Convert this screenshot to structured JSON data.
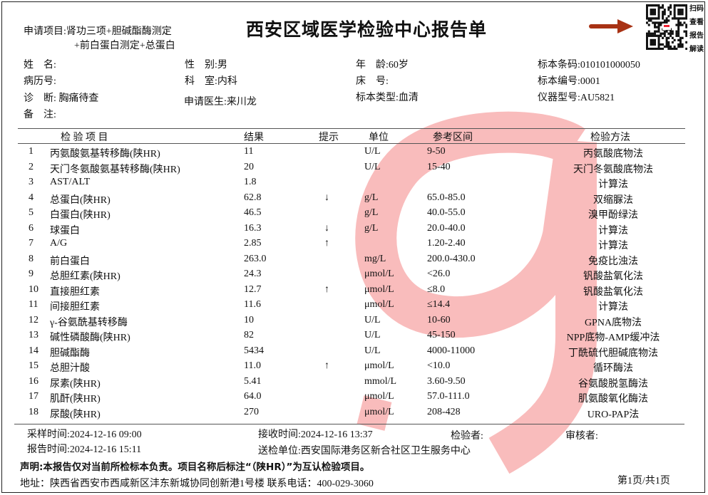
{
  "title": "西安区域医学检验中心报告单",
  "request": {
    "label": "申请项目:",
    "line1": "肾功三项+胆碱酯酶测定",
    "line2": "+前白蛋白测定+总蛋白"
  },
  "qr": {
    "labels": [
      "扫码",
      "查看",
      "报告",
      "解读"
    ],
    "arrow_color": "#a83214"
  },
  "patient": {
    "name": "姓　名:",
    "gender": "性　别:男",
    "age": "年　龄:60岁",
    "barcode": "标本条码:010101000050",
    "record_no": "病历号:",
    "department": "科　室:内科",
    "bed": "床　号:",
    "specimen_no": "标本编号:0001",
    "diagnosis": "诊　断: 胸痛待查",
    "doctor": "申请医生:来川龙",
    "specimen_type": "标本类型:血清",
    "instrument": "仪器型号:AU5821",
    "remark": "备　注:"
  },
  "table": {
    "headers": {
      "item": "检 验 项 目",
      "result": "结果",
      "hint": "提示",
      "unit": "单位",
      "ref": "参考区间",
      "method": "检验方法"
    },
    "rows": [
      {
        "no": "1",
        "name": "丙氨酸氨基转移酶(陕HR)",
        "result": "11",
        "hint": "",
        "unit": "U/L",
        "ref": "9-50",
        "method": "丙氨酸底物法"
      },
      {
        "no": "2",
        "name": "天门冬氨酸氨基转移酶(陕HR)",
        "result": "20",
        "hint": "",
        "unit": "U/L",
        "ref": "15-40",
        "method": "天门冬氨酸底物法"
      },
      {
        "no": "3",
        "name": "AST/ALT",
        "result": "1.8",
        "hint": "",
        "unit": "",
        "ref": "",
        "method": "计算法"
      },
      {
        "no": "4",
        "name": "总蛋白(陕HR)",
        "result": "62.8",
        "hint": "↓",
        "unit": "g/L",
        "ref": "65.0-85.0",
        "method": "双缩脲法"
      },
      {
        "no": "5",
        "name": "白蛋白(陕HR)",
        "result": "46.5",
        "hint": "",
        "unit": "g/L",
        "ref": "40.0-55.0",
        "method": "溴甲酚绿法"
      },
      {
        "no": "6",
        "name": "球蛋白",
        "result": "16.3",
        "hint": "↓",
        "unit": "g/L",
        "ref": "20.0-40.0",
        "method": "计算法"
      },
      {
        "no": "7",
        "name": "A/G",
        "result": "2.85",
        "hint": "↑",
        "unit": "",
        "ref": "1.20-2.40",
        "method": "计算法"
      },
      {
        "no": "8",
        "name": "前白蛋白",
        "result": "263.0",
        "hint": "",
        "unit": "mg/L",
        "ref": "200.0-430.0",
        "method": "免疫比浊法"
      },
      {
        "no": "9",
        "name": "总胆红素(陕HR)",
        "result": "24.3",
        "hint": "",
        "unit": "μmol/L",
        "ref": "<26.0",
        "method": "钒酸盐氧化法"
      },
      {
        "no": "10",
        "name": "直接胆红素",
        "result": "12.7",
        "hint": "↑",
        "unit": "μmol/L",
        "ref": "≤8.0",
        "method": "钒酸盐氧化法"
      },
      {
        "no": "11",
        "name": "间接胆红素",
        "result": "11.6",
        "hint": "",
        "unit": "μmol/L",
        "ref": "≤14.4",
        "method": "计算法"
      },
      {
        "no": "12",
        "name": "γ-谷氨酰基转移酶",
        "result": "10",
        "hint": "",
        "unit": "U/L",
        "ref": "10-60",
        "method": "GPNA底物法"
      },
      {
        "no": "13",
        "name": "碱性磷酸酶(陕HR)",
        "result": "82",
        "hint": "",
        "unit": "U/L",
        "ref": "45-150",
        "method": "NPP底物-AMP缓冲法"
      },
      {
        "no": "14",
        "name": "胆碱酯酶",
        "result": "5434",
        "hint": "",
        "unit": "U/L",
        "ref": "4000-11000",
        "method": "丁酰硫代胆碱底物法"
      },
      {
        "no": "15",
        "name": "总胆汁酸",
        "result": "11.0",
        "hint": "↑",
        "unit": "μmol/L",
        "ref": "<10.0",
        "method": "循环酶法"
      },
      {
        "no": "16",
        "name": "尿素(陕HR)",
        "result": "5.41",
        "hint": "",
        "unit": "mmol/L",
        "ref": "3.60-9.50",
        "method": "谷氨酸脱氢酶法"
      },
      {
        "no": "17",
        "name": "肌酐(陕HR)",
        "result": "64.0",
        "hint": "",
        "unit": "μmol/L",
        "ref": "57.0-111.0",
        "method": "肌氨酸氧化酶法"
      },
      {
        "no": "18",
        "name": "尿酸(陕HR)",
        "result": "270",
        "hint": "",
        "unit": "μmol/L",
        "ref": "208-428",
        "method": "URO-PAP法"
      }
    ]
  },
  "footer": {
    "sample_time": "采样时间:2024-12-16 09:00",
    "receive_time": "接收时间:2024-12-16 13:37",
    "tester": "检验者:",
    "reviewer": "审核者:",
    "report_time": "报告时间:2024-12-16 15:11",
    "sender": "送检单位:西安国际港务区新合社区卫生服务中心",
    "statement": "声明:本报告仅对当前所检标本负责。项目名称后标注“（陕HR）”为互认检验项目。",
    "address": "地址：陕西省西安市西咸新区沣东新城协同创新港1号楼 联系电话：400-029-3060",
    "page": "第1页/共1页"
  },
  "watermark_color": "#f9bcbc"
}
